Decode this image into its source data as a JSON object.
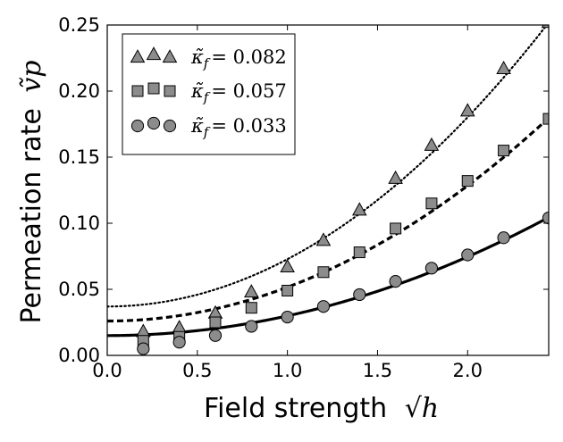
{
  "chart_data": {
    "type": "scatter",
    "xlabel": "Field strength",
    "xlabel_math": "√h",
    "ylabel": "Permeation rate",
    "ylabel_math": "ṽp",
    "xlim": [
      0.0,
      2.45
    ],
    "ylim": [
      0.0,
      0.25
    ],
    "xticks": [
      0.0,
      0.5,
      1.0,
      1.5,
      2.0
    ],
    "xtick_labels": [
      "0.0",
      "0.5",
      "1.0",
      "1.5",
      "2.0"
    ],
    "yticks": [
      0.0,
      0.05,
      0.1,
      0.15,
      0.2,
      0.25
    ],
    "ytick_labels": [
      "0.00",
      "0.05",
      "0.10",
      "0.15",
      "0.20",
      "0.25"
    ],
    "legend_position": "top-left",
    "series": [
      {
        "name": "κ̃f = 0.082",
        "kappa_symbol": "κ̃",
        "kappa_sub": "f",
        "kappa_value": "= 0.082",
        "marker": "triangle",
        "line_style": "dotted",
        "x": [
          0.2,
          0.4,
          0.6,
          0.8,
          1.0,
          1.2,
          1.4,
          1.6,
          1.8,
          2.0,
          2.2,
          2.45
        ],
        "values": [
          0.018,
          0.021,
          0.032,
          0.048,
          0.067,
          0.087,
          0.11,
          0.134,
          0.159,
          0.185,
          0.217,
          0.252
        ],
        "fit": {
          "a": 0.037,
          "b": 0.0358,
          "p": 2
        }
      },
      {
        "name": "κ̃f = 0.057",
        "kappa_symbol": "κ̃",
        "kappa_sub": "f",
        "kappa_value": "= 0.057",
        "marker": "square",
        "line_style": "dashed",
        "x": [
          0.2,
          0.4,
          0.6,
          0.8,
          1.0,
          1.2,
          1.4,
          1.6,
          1.8,
          2.0,
          2.2,
          2.45
        ],
        "values": [
          0.011,
          0.014,
          0.025,
          0.036,
          0.049,
          0.063,
          0.078,
          0.096,
          0.115,
          0.132,
          0.155,
          0.179
        ],
        "fit": {
          "a": 0.026,
          "b": 0.0256,
          "p": 2
        }
      },
      {
        "name": "κ̃f = 0.033",
        "kappa_symbol": "κ̃",
        "kappa_sub": "f",
        "kappa_value": "= 0.033",
        "marker": "circle",
        "line_style": "solid",
        "x": [
          0.2,
          0.4,
          0.6,
          0.8,
          1.0,
          1.2,
          1.4,
          1.6,
          1.8,
          2.0,
          2.2,
          2.45
        ],
        "values": [
          0.005,
          0.01,
          0.015,
          0.022,
          0.029,
          0.037,
          0.046,
          0.056,
          0.066,
          0.076,
          0.089,
          0.104
        ],
        "fit": {
          "a": 0.015,
          "b": 0.0149,
          "p": 2
        }
      }
    ]
  },
  "colors": {
    "marker_fill": "#8c8c8c",
    "marker_edge": "#000000",
    "line": "#000000",
    "axes": "#000000",
    "background": "#ffffff"
  }
}
